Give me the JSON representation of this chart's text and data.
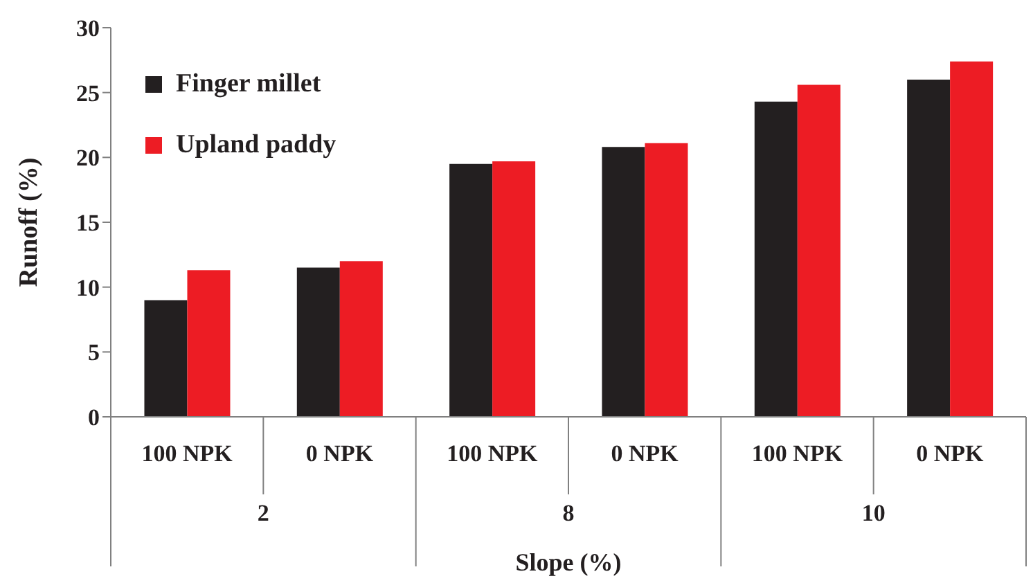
{
  "chart_data": {
    "type": "bar",
    "xlabel": "Slope (%)",
    "ylabel": "Runoff (%)",
    "categories": [
      "100 NPK",
      "0 NPK",
      "100 NPK",
      "0 NPK",
      "100 NPK",
      "0 NPK"
    ],
    "annotations": [
      "2",
      "8",
      "10"
    ],
    "series": [
      {
        "name": "Finger millet",
        "color": "#231f20",
        "values": [
          9.0,
          11.5,
          19.5,
          20.8,
          24.3,
          26.0
        ]
      },
      {
        "name": "Upland paddy",
        "color": "#ed1c24",
        "values": [
          11.3,
          12.0,
          19.7,
          21.1,
          25.6,
          27.4
        ]
      }
    ],
    "ylim": [
      0,
      30
    ],
    "yticks": [
      0,
      5,
      10,
      15,
      20,
      25,
      30
    ],
    "grid": false,
    "legend": "top left"
  }
}
